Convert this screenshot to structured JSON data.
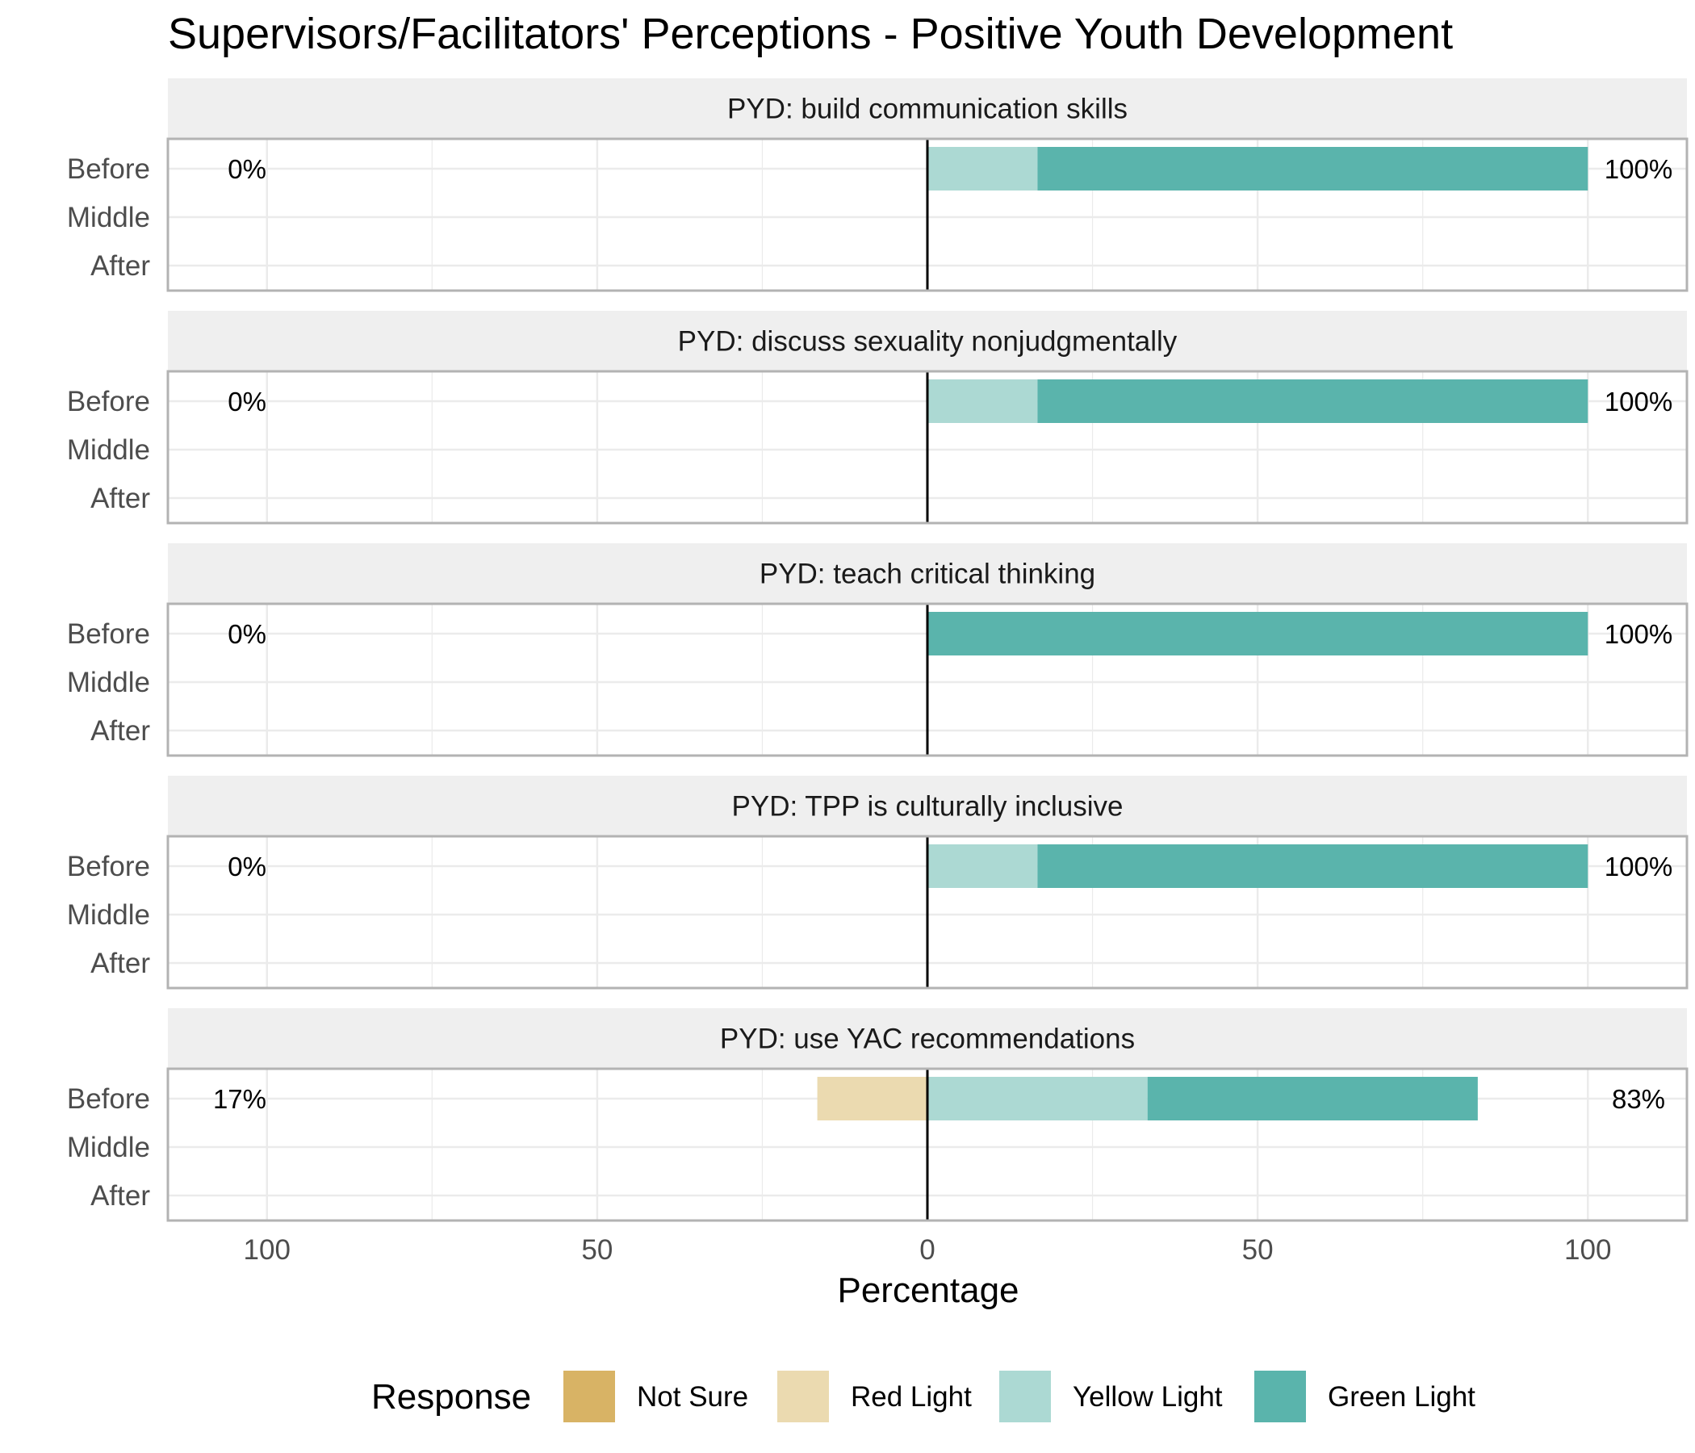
{
  "chart_data": {
    "type": "bar",
    "orientation": "horizontal",
    "stacking": "diverging",
    "title": "Supervisors/Facilitators' Perceptions - Positive Youth Development",
    "xlabel": "Percentage",
    "xlim": [
      -115,
      115
    ],
    "xticks": [
      -100,
      -50,
      0,
      50,
      100
    ],
    "xtick_labels": [
      "100",
      "50",
      "0",
      "50",
      "100"
    ],
    "y_categories": [
      "Before",
      "Middle",
      "After"
    ],
    "grid": true,
    "legend_position": "bottom",
    "legend_title": "Response",
    "legend": [
      {
        "name": "Not Sure",
        "color": "#d8b365"
      },
      {
        "name": "Red Light",
        "color": "#ebdab0"
      },
      {
        "name": "Yellow Light",
        "color": "#acd9d3"
      },
      {
        "name": "Green Light",
        "color": "#5ab4ac"
      }
    ],
    "panels": [
      {
        "title": "PYD: build communication skills",
        "rows": [
          {
            "category": "Before",
            "left_label": "0%",
            "right_label": "100%",
            "segments": [
              {
                "series": "Yellow Light",
                "start": 0,
                "end": 16.67
              },
              {
                "series": "Green Light",
                "start": 16.67,
                "end": 100
              }
            ]
          },
          {
            "category": "Middle",
            "segments": []
          },
          {
            "category": "After",
            "segments": []
          }
        ]
      },
      {
        "title": "PYD: discuss sexuality nonjudgmentally",
        "rows": [
          {
            "category": "Before",
            "left_label": "0%",
            "right_label": "100%",
            "segments": [
              {
                "series": "Yellow Light",
                "start": 0,
                "end": 16.67
              },
              {
                "series": "Green Light",
                "start": 16.67,
                "end": 100
              }
            ]
          },
          {
            "category": "Middle",
            "segments": []
          },
          {
            "category": "After",
            "segments": []
          }
        ]
      },
      {
        "title": "PYD: teach critical thinking",
        "rows": [
          {
            "category": "Before",
            "left_label": "0%",
            "right_label": "100%",
            "segments": [
              {
                "series": "Green Light",
                "start": 0,
                "end": 100
              }
            ]
          },
          {
            "category": "Middle",
            "segments": []
          },
          {
            "category": "After",
            "segments": []
          }
        ]
      },
      {
        "title": "PYD: TPP is culturally inclusive",
        "rows": [
          {
            "category": "Before",
            "left_label": "0%",
            "right_label": "100%",
            "segments": [
              {
                "series": "Yellow Light",
                "start": 0,
                "end": 16.67
              },
              {
                "series": "Green Light",
                "start": 16.67,
                "end": 100
              }
            ]
          },
          {
            "category": "Middle",
            "segments": []
          },
          {
            "category": "After",
            "segments": []
          }
        ]
      },
      {
        "title": "PYD: use YAC recommendations",
        "rows": [
          {
            "category": "Before",
            "left_label": "17%",
            "right_label": "83%",
            "segments": [
              {
                "series": "Red Light",
                "start": -16.67,
                "end": 0
              },
              {
                "series": "Yellow Light",
                "start": 0,
                "end": 33.33
              },
              {
                "series": "Green Light",
                "start": 33.33,
                "end": 83.33
              }
            ]
          },
          {
            "category": "Middle",
            "segments": []
          },
          {
            "category": "After",
            "segments": []
          }
        ]
      }
    ]
  }
}
